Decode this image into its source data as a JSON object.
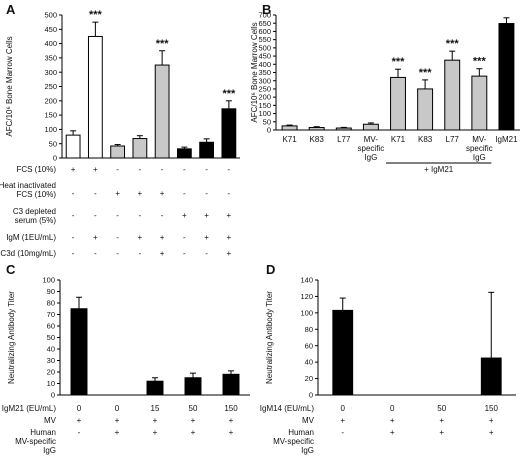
{
  "chart_data": [
    {
      "panel": "A",
      "type": "bar",
      "ylabel": "AFC/10⁶ Bone Marrow Cells",
      "ylim": [
        0,
        500
      ],
      "yticks": [
        0,
        50,
        100,
        150,
        200,
        250,
        300,
        350,
        400,
        450,
        500
      ],
      "values": [
        80,
        425,
        42,
        68,
        325,
        32,
        55,
        172
      ],
      "errors": [
        15,
        50,
        5,
        10,
        50,
        6,
        12,
        28
      ],
      "fills": [
        "#ffffff",
        "#ffffff",
        "#c8c8c8",
        "#c8c8c8",
        "#c8c8c8",
        "#000000",
        "#000000",
        "#000000"
      ],
      "stars": [
        "",
        "***",
        "",
        "",
        "***",
        "",
        "",
        "***"
      ],
      "conditions": [
        {
          "label": "FCS (10%)",
          "marks": [
            "+",
            "+",
            "-",
            "-",
            "-",
            "-",
            "-",
            "-"
          ]
        },
        {
          "label": "Heat inactivated FCS (10%)",
          "marks": [
            "-",
            "-",
            "+",
            "+",
            "+",
            "-",
            "-",
            "-"
          ]
        },
        {
          "label": "C3 depleted serum (5%)",
          "marks": [
            "-",
            "-",
            "-",
            "-",
            "-",
            "+",
            "+",
            "+"
          ]
        },
        {
          "label": "IgM (1EU/mL)",
          "marks": [
            "-",
            "+",
            "-",
            "+",
            "+",
            "-",
            "+",
            "+"
          ]
        },
        {
          "label": "C3d (10mg/mL)",
          "marks": [
            "-",
            "-",
            "-",
            "-",
            "+",
            "-",
            "-",
            "+"
          ]
        }
      ]
    },
    {
      "panel": "B",
      "type": "bar",
      "ylabel": "AFC/10⁶ Bone Marrow Cells",
      "ylim": [
        0,
        700
      ],
      "yticks": [
        0,
        50,
        100,
        150,
        200,
        250,
        300,
        350,
        400,
        450,
        500,
        550,
        600,
        650,
        700
      ],
      "categories": [
        "K71",
        "K83",
        "L77",
        "MV-specific IgG",
        "K71",
        "K83",
        "L77",
        "MV-specific IgG",
        "IgM21"
      ],
      "values": [
        25,
        15,
        12,
        35,
        320,
        250,
        425,
        328,
        648
      ],
      "errors": [
        5,
        5,
        4,
        8,
        50,
        55,
        55,
        45,
        35
      ],
      "fills": [
        "#c8c8c8",
        "#c8c8c8",
        "#c8c8c8",
        "#c8c8c8",
        "#c8c8c8",
        "#c8c8c8",
        "#c8c8c8",
        "#c8c8c8",
        "#000000"
      ],
      "stars": [
        "",
        "",
        "",
        "",
        "***",
        "***",
        "***",
        "***",
        ""
      ],
      "group_label": "+ IgM21"
    },
    {
      "panel": "C",
      "type": "bar",
      "ylabel": "Neutralizing Antibody Titer",
      "ylim": [
        0,
        100
      ],
      "yticks": [
        0,
        10,
        20,
        30,
        40,
        50,
        60,
        70,
        80,
        90,
        100
      ],
      "values": [
        75,
        0,
        12,
        15,
        18
      ],
      "errors": [
        10,
        0,
        3,
        4,
        3
      ],
      "conditions": [
        {
          "label": "IgM21 (EU/mL)",
          "marks": [
            "0",
            "0",
            "15",
            "50",
            "150"
          ]
        },
        {
          "label": "MV",
          "marks": [
            "+",
            "+",
            "+",
            "+",
            "+"
          ]
        },
        {
          "label": "Human MV-specific IgG",
          "marks": [
            "-",
            "+",
            "+",
            "+",
            "+"
          ]
        }
      ]
    },
    {
      "panel": "D",
      "type": "bar",
      "ylabel": "Neutralizing Antibody Titer",
      "ylim": [
        0,
        140
      ],
      "yticks": [
        0,
        20,
        40,
        60,
        80,
        100,
        120,
        140
      ],
      "values": [
        103,
        0,
        0,
        45
      ],
      "errors": [
        15,
        0,
        0,
        80
      ],
      "conditions": [
        {
          "label": "IgM14 (EU/mL)",
          "marks": [
            "0",
            "0",
            "50",
            "150"
          ]
        },
        {
          "label": "MV",
          "marks": [
            "+",
            "+",
            "+",
            "+"
          ]
        },
        {
          "label": "Human MV-specific IgG",
          "marks": [
            "-",
            "+",
            "+",
            "+"
          ]
        }
      ]
    }
  ]
}
